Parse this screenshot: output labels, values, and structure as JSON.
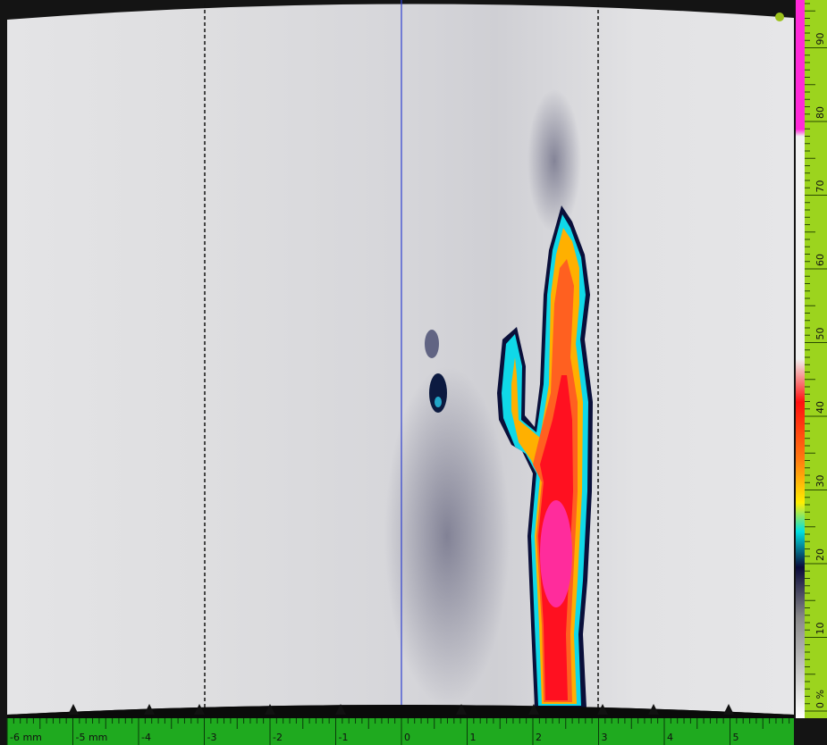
{
  "ruler": {
    "labels": [
      "-6 mm",
      "-5 mm",
      "-4",
      "-3",
      "-2",
      "-1",
      "0",
      "1",
      "2",
      "3",
      "4",
      "5"
    ]
  },
  "color_scale": {
    "labels": [
      "0 %",
      "10",
      "20",
      "30",
      "40",
      "50",
      "60",
      "70",
      "80",
      "90"
    ]
  }
}
